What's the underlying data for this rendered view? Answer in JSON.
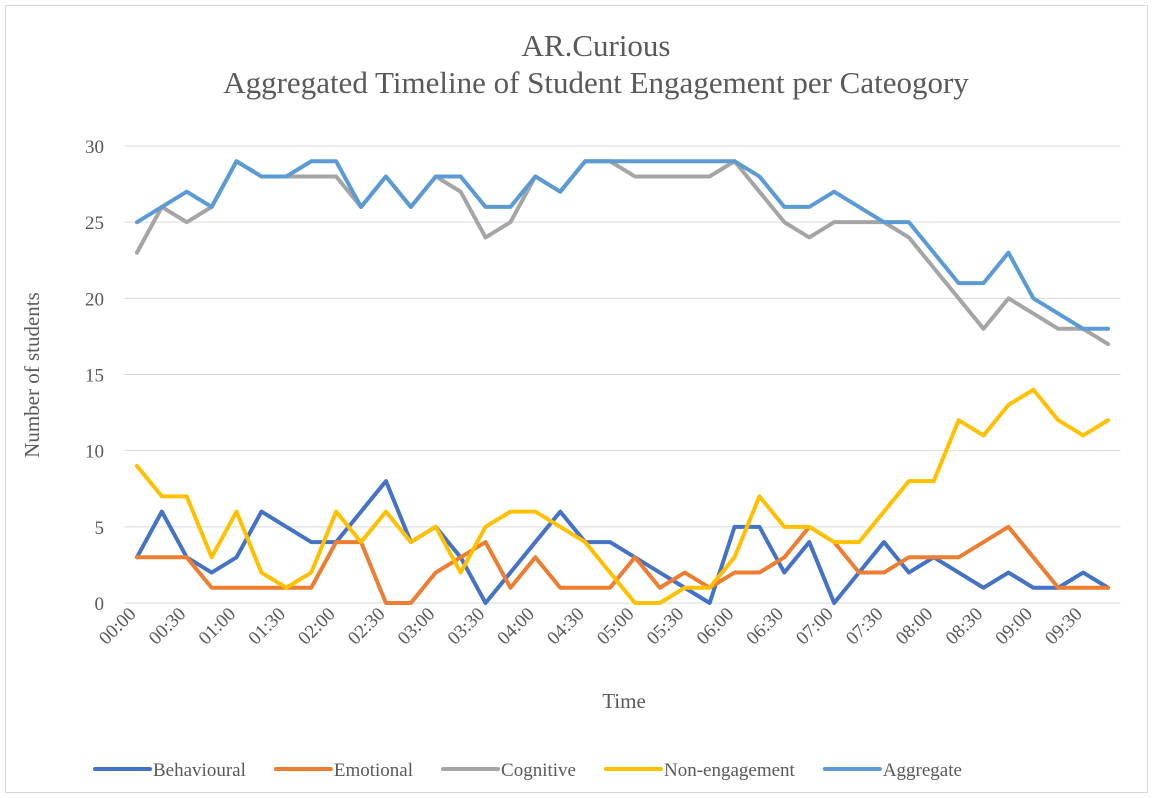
{
  "chart_data": {
    "type": "line",
    "title": "AR.Curious",
    "subtitle": "Aggregated Timeline of Student Engagement per Cateogory",
    "x_label": "Time",
    "y_label": "Number of students",
    "categories": [
      "00:00",
      null,
      "00:30",
      null,
      "01:00",
      null,
      "01:30",
      null,
      "02:00",
      null,
      "02:30",
      null,
      "03:00",
      null,
      "03:30",
      null,
      "04:00",
      null,
      "04:30",
      null,
      "05:00",
      null,
      "05:30",
      null,
      "06:00",
      null,
      "06:30",
      null,
      "07:00",
      null,
      "07:30",
      null,
      "08:00",
      null,
      "08:30",
      null,
      "09:00",
      null,
      "09:30",
      null
    ],
    "series": [
      {
        "name": "Behavioural",
        "color": "#4472c4",
        "values": [
          3,
          6,
          3,
          2,
          3,
          6,
          5,
          4,
          4,
          6,
          8,
          4,
          5,
          3,
          0,
          2,
          4,
          6,
          4,
          4,
          3,
          2,
          1,
          0,
          5,
          5,
          2,
          4,
          0,
          2,
          4,
          2,
          3,
          2,
          1,
          2,
          1,
          1,
          2,
          1
        ]
      },
      {
        "name": "Emotional",
        "color": "#ed7d31",
        "values": [
          3,
          3,
          3,
          1,
          1,
          1,
          1,
          1,
          4,
          4,
          0,
          0,
          2,
          3,
          4,
          1,
          3,
          1,
          1,
          1,
          3,
          1,
          2,
          1,
          2,
          2,
          3,
          5,
          4,
          2,
          2,
          3,
          3,
          3,
          4,
          5,
          3,
          1,
          1,
          1
        ]
      },
      {
        "name": "Cognitive",
        "color": "#a5a5a5",
        "values": [
          23,
          26,
          25,
          26,
          29,
          28,
          28,
          28,
          28,
          26,
          28,
          26,
          28,
          27,
          24,
          25,
          28,
          27,
          29,
          29,
          28,
          28,
          28,
          28,
          29,
          27,
          25,
          24,
          25,
          25,
          25,
          24,
          22,
          20,
          18,
          20,
          19,
          18,
          18,
          17
        ]
      },
      {
        "name": "Non-engagement",
        "color": "#ffc000",
        "values": [
          9,
          7,
          7,
          3,
          6,
          2,
          1,
          2,
          6,
          4,
          6,
          4,
          5,
          2,
          5,
          6,
          6,
          5,
          4,
          2,
          0,
          0,
          1,
          1,
          3,
          7,
          5,
          5,
          4,
          4,
          6,
          8,
          8,
          12,
          11,
          13,
          14,
          12,
          11,
          12
        ]
      },
      {
        "name": "Aggregate",
        "color": "#5b9bd5",
        "values": [
          25,
          26,
          27,
          26,
          29,
          28,
          28,
          29,
          29,
          26,
          28,
          26,
          28,
          28,
          26,
          26,
          28,
          27,
          29,
          29,
          29,
          29,
          29,
          29,
          29,
          28,
          26,
          26,
          27,
          26,
          25,
          25,
          23,
          21,
          21,
          23,
          20,
          19,
          18,
          18
        ]
      }
    ],
    "ylim": [
      0,
      30
    ],
    "yticks": [
      0,
      5,
      10,
      15,
      20,
      25,
      30
    ],
    "grid": true,
    "legend": "bottom"
  }
}
